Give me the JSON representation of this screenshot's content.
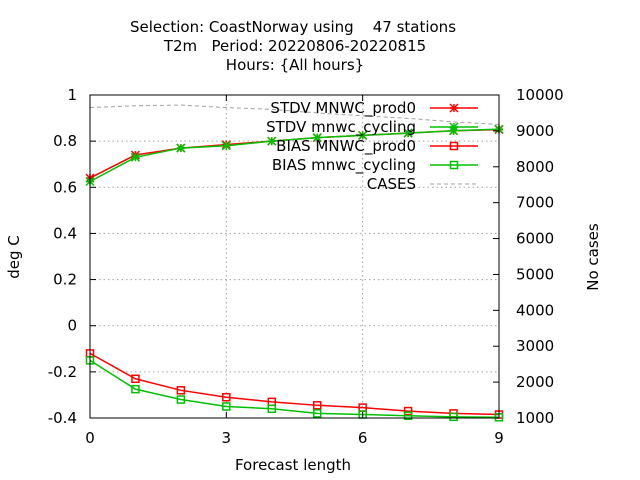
{
  "chart_data": {
    "type": "line",
    "title_lines": [
      "Selection: CoastNorway using    47 stations",
      "T2m   Period: 20220806-20220815",
      "Hours: {All hours}"
    ],
    "xlabel": "Forecast length",
    "ylabel": "deg C",
    "y2label": "No cases",
    "xlim": [
      0,
      9
    ],
    "ylim": [
      -0.4,
      1
    ],
    "y2lim": [
      1000,
      10000
    ],
    "xticks": [
      0,
      3,
      6,
      9
    ],
    "yticks": [
      -0.4,
      -0.2,
      0,
      0.2,
      0.4,
      0.6,
      0.8,
      1
    ],
    "ytick_labels": [
      "-0.4",
      "-0.2",
      "0",
      "0.2",
      "0.4",
      "0.6",
      "0.8",
      "1"
    ],
    "y2ticks": [
      1000,
      2000,
      3000,
      4000,
      5000,
      6000,
      7000,
      8000,
      9000,
      10000
    ],
    "grid": true,
    "legend_position": "top-right",
    "x": [
      0,
      1,
      2,
      3,
      4,
      5,
      6,
      7,
      8,
      9
    ],
    "series": [
      {
        "name": "STDV MNWC_prod0",
        "axis": "y",
        "color": "#ff0000",
        "marker": "star",
        "values": [
          0.64,
          0.74,
          0.77,
          0.785,
          0.8,
          0.815,
          0.825,
          0.835,
          0.845,
          0.85
        ]
      },
      {
        "name": "STDV mnwc_cycling",
        "axis": "y",
        "color": "#00c000",
        "marker": "star",
        "values": [
          0.625,
          0.73,
          0.77,
          0.78,
          0.8,
          0.815,
          0.825,
          0.835,
          0.845,
          0.852
        ]
      },
      {
        "name": "BIAS MNWC_prod0",
        "axis": "y",
        "color": "#ff0000",
        "marker": "square",
        "values": [
          -0.12,
          -0.23,
          -0.28,
          -0.31,
          -0.33,
          -0.345,
          -0.355,
          -0.37,
          -0.38,
          -0.385
        ]
      },
      {
        "name": "BIAS mnwc_cycling",
        "axis": "y",
        "color": "#00c000",
        "marker": "square",
        "values": [
          -0.15,
          -0.275,
          -0.32,
          -0.35,
          -0.36,
          -0.38,
          -0.385,
          -0.39,
          -0.395,
          -0.397
        ]
      },
      {
        "name": "CASES",
        "axis": "y2",
        "color": "#a0a0a0",
        "marker": "none",
        "dashed": true,
        "values": [
          9650,
          9700,
          9720,
          9650,
          9600,
          9500,
          9420,
          9350,
          9250,
          9180
        ]
      }
    ]
  }
}
